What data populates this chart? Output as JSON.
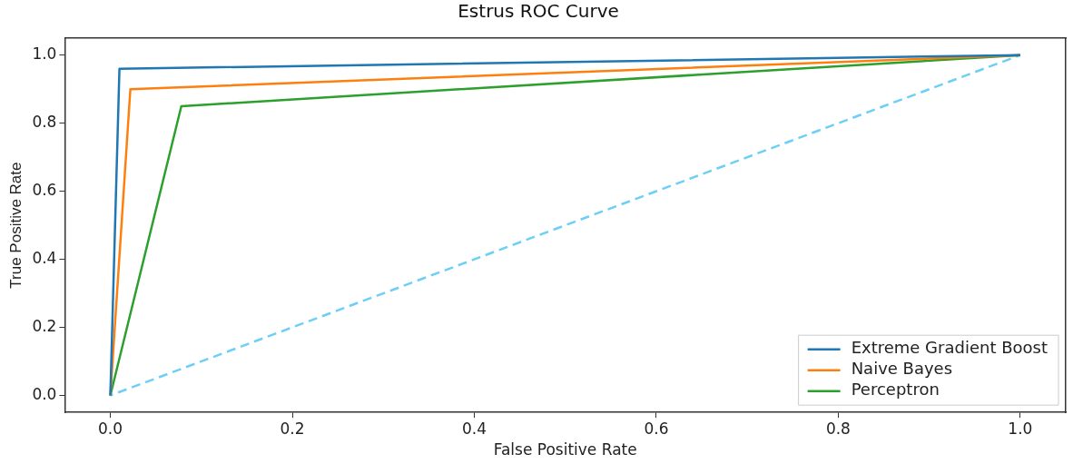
{
  "chart_data": {
    "type": "line",
    "title": "Estrus ROC Curve",
    "xlabel": "False Positive Rate",
    "ylabel": "True Positive Rate",
    "xlim": [
      -0.05,
      1.05
    ],
    "ylim": [
      -0.05,
      1.05
    ],
    "xticks": [
      {
        "value": 0,
        "label": "0.0"
      },
      0.2,
      0.4,
      0.6,
      0.8,
      {
        "value": 1,
        "label": "1.0"
      }
    ],
    "yticks": [
      {
        "value": 0,
        "label": "0.0"
      },
      0.2,
      0.4,
      0.6,
      0.8,
      {
        "value": 1,
        "label": "1.0"
      }
    ],
    "grid": false,
    "legend": "bottom right",
    "marker": "none",
    "series": [
      {
        "name": "Extreme Gradient Boost",
        "color": "#1f77b4",
        "x": [
          0,
          0.01,
          1
        ],
        "values": [
          0,
          0.96,
          1
        ]
      },
      {
        "name": "Naive Bayes",
        "color": "#ff7f0e",
        "x": [
          0,
          0.022,
          1
        ],
        "values": [
          0,
          0.9,
          1
        ]
      },
      {
        "name": "Perceptron",
        "color": "#2ca02c",
        "x": [
          0,
          0.078,
          1
        ],
        "values": [
          0,
          0.85,
          1
        ]
      },
      {
        "color": "#6ecff6",
        "line_style": "dashed",
        "x": [
          0,
          1
        ],
        "values": [
          0,
          1
        ]
      }
    ]
  }
}
